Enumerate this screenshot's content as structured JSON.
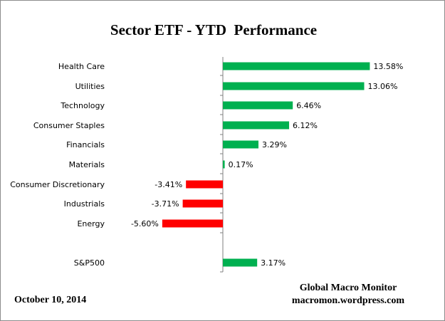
{
  "chart_data": {
    "type": "bar",
    "orientation": "horizontal",
    "title": "Sector ETF - YTD  Performance",
    "categories": [
      "Health Care",
      "Utilities",
      "Technology",
      "Consumer Staples",
      "Financials",
      "Materials",
      "Consumer Discretionary",
      "Industrials",
      "Energy",
      "S&P500"
    ],
    "values": [
      13.58,
      13.06,
      6.46,
      6.12,
      3.29,
      0.17,
      -3.41,
      -3.71,
      -5.6,
      3.17
    ],
    "value_labels": [
      "13.58%",
      "13.06%",
      "6.46%",
      "6.12%",
      "3.29%",
      "0.17%",
      "-3.41%",
      "-3.71%",
      "-5.60%",
      "3.17%"
    ],
    "colors": {
      "positive": "#00b050",
      "negative": "#ff0000",
      "axis": "#7f7f7f"
    },
    "grid": false,
    "legend": "none"
  },
  "footer": {
    "date": "October 10,  2014",
    "credit_line1": "Global Macro Monitor",
    "credit_line2": "macromon.wordpress.com"
  }
}
